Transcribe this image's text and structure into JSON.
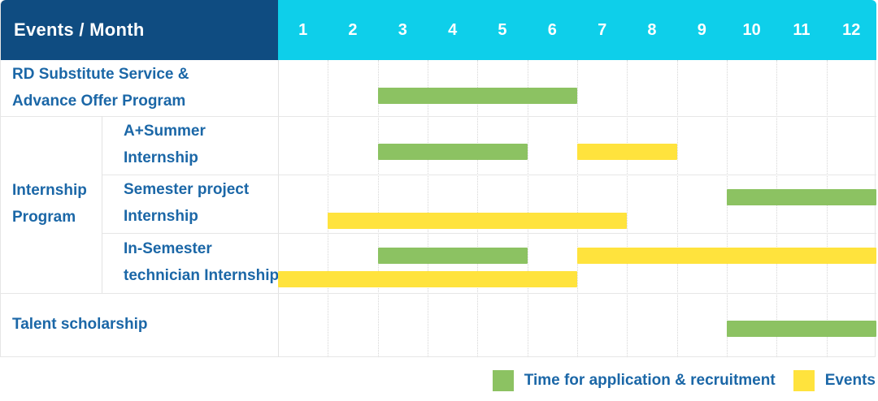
{
  "colors": {
    "header_navy": "#0F4C81",
    "header_cyan": "#0ECFEA",
    "recruitment_green": "#8CC262",
    "event_yellow": "#FFE33D",
    "label_blue": "#1B67A7"
  },
  "legend": {
    "items": [
      {
        "kind": "recruitment",
        "label": "Time for application & recruitment"
      },
      {
        "kind": "event",
        "label": "Events"
      }
    ]
  },
  "chart_data": {
    "type": "gantt",
    "title": "Events / Month",
    "x_categories": [
      "1",
      "2",
      "3",
      "4",
      "5",
      "6",
      "7",
      "8",
      "9",
      "10",
      "11",
      "12"
    ],
    "x_range": [
      1,
      12
    ],
    "legend_position": "bottom-right",
    "group": {
      "label_lines": [
        "Internship",
        "Program"
      ],
      "row_start_index": 1,
      "row_end_index": 3
    },
    "rows": [
      {
        "name": "rd-substitute-service",
        "label_lines": [
          "RD Substitute Service &",
          "Advance Offer Program"
        ],
        "indent": false,
        "bars": [
          {
            "kind": "recruitment",
            "start_month": 3,
            "end_month": 6,
            "lane": "mid"
          }
        ]
      },
      {
        "name": "a-plus-summer-internship",
        "label_lines": [
          "A+Summer",
          "Internship"
        ],
        "indent": true,
        "bars": [
          {
            "kind": "recruitment",
            "start_month": 3,
            "end_month": 5,
            "lane": "mid"
          },
          {
            "kind": "event",
            "start_month": 7,
            "end_month": 8,
            "lane": "mid"
          }
        ]
      },
      {
        "name": "semester-project-internship",
        "label_lines": [
          "Semester project",
          "Internship"
        ],
        "indent": true,
        "bars": [
          {
            "kind": "recruitment",
            "start_month": 10,
            "end_month": 12,
            "lane": "top"
          },
          {
            "kind": "event",
            "start_month": 2,
            "end_month": 7,
            "lane": "bottom"
          }
        ]
      },
      {
        "name": "in-semester-technician-internship",
        "label_lines": [
          "In-Semester",
          "technician Internship"
        ],
        "indent": true,
        "bars": [
          {
            "kind": "recruitment",
            "start_month": 3,
            "end_month": 5,
            "lane": "top"
          },
          {
            "kind": "event",
            "start_month": 7,
            "end_month": 12,
            "lane": "top"
          },
          {
            "kind": "event",
            "start_month": 1,
            "end_month": 6,
            "lane": "bottom"
          }
        ]
      },
      {
        "name": "talent-scholarship",
        "label_lines": [
          "Talent scholarship"
        ],
        "indent": false,
        "bars": [
          {
            "kind": "recruitment",
            "start_month": 10,
            "end_month": 12,
            "lane": "mid"
          }
        ]
      }
    ]
  }
}
